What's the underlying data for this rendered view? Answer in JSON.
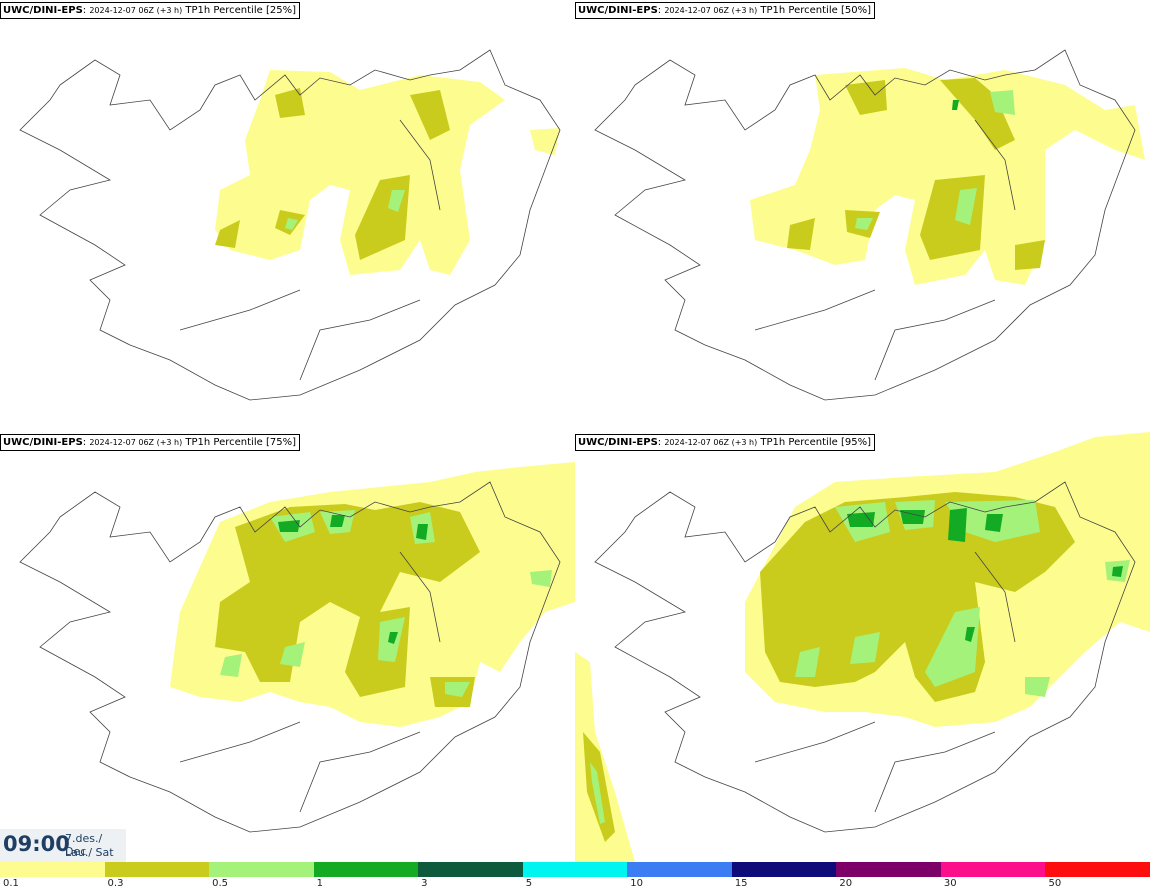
{
  "panels": [
    {
      "model": "UWC/DINI-EPS",
      "run": "2024-12-07 06Z (+3 h)",
      "field": "TP1h Percentile [25%]"
    },
    {
      "model": "UWC/DINI-EPS",
      "run": "2024-12-07 06Z (+3 h)",
      "field": "TP1h Percentile [50%]"
    },
    {
      "model": "UWC/DINI-EPS",
      "run": "2024-12-07 06Z (+3 h)",
      "field": "TP1h Percentile [75%]"
    },
    {
      "model": "UWC/DINI-EPS",
      "run": "2024-12-07 06Z (+3 h)",
      "field": "TP1h Percentile [95%]"
    }
  ],
  "valid_time": {
    "time": "09:00",
    "date_line1": "7.des./ Dec",
    "date_line2": "Lau./ Sat"
  },
  "legend": {
    "colors": [
      "#fdfd8f",
      "#c9cc1c",
      "#a5f27a",
      "#12ab23",
      "#0d5a3c",
      "#00f4f0",
      "#3c7df4",
      "#0d0c7a",
      "#7d0068",
      "#fc0f8a",
      "#fd0d0d"
    ],
    "tick_labels": [
      "0.1",
      "0.3",
      "0.5",
      "1",
      "3",
      "5",
      "10",
      "15",
      "20",
      "30",
      "50"
    ]
  }
}
